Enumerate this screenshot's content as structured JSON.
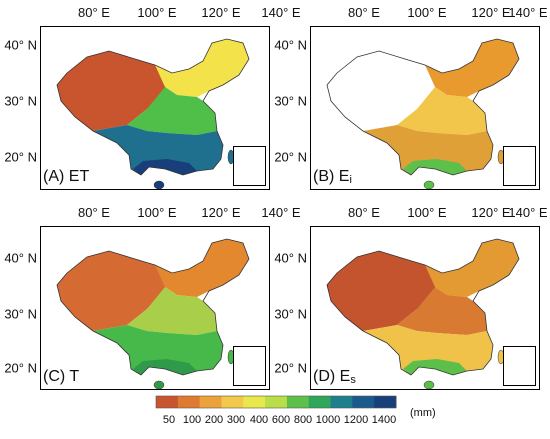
{
  "longitude_labels": [
    "80° E",
    "100° E",
    "120° E",
    "140° E"
  ],
  "latitude_labels": [
    "40° N",
    "30° N",
    "20° N"
  ],
  "panels": [
    {
      "id": "A",
      "label": "(A)  ET",
      "title_main": "(A)  ET",
      "title_sub": "",
      "variable": "ET",
      "palette": {
        "north_west": "#c9552e",
        "north_east": "#f4e24a",
        "center": "#4fbf4a",
        "south": "#1f6f8f",
        "south_tip": "#183f7a"
      }
    },
    {
      "id": "B",
      "label": "(B)  Ei",
      "title_main": "(B)  E",
      "title_sub": "i",
      "variable": "Ei",
      "palette": {
        "north_west": "#ffffff",
        "north_east": "#e89a2f",
        "center": "#f2c64a",
        "south": "#e0a038",
        "south_tip": "#5cc04a"
      }
    },
    {
      "id": "C",
      "label": "(C)  T",
      "title_main": "(C)  T",
      "title_sub": "",
      "variable": "T",
      "palette": {
        "north_west": "#d66a33",
        "north_east": "#e3882f",
        "center": "#a9cf4a",
        "south": "#47b84a",
        "south_tip": "#2f9a4a"
      }
    },
    {
      "id": "D",
      "label": "(D)  Es",
      "title_main": "(D)  E",
      "title_sub": "s",
      "variable": "Es",
      "palette": {
        "north_west": "#c4542d",
        "north_east": "#e49a33",
        "center": "#d97a32",
        "south": "#f0c24a",
        "south_tip": "#5cbf4a"
      }
    }
  ],
  "legend": {
    "ticks": [
      "50",
      "100",
      "200",
      "300",
      "400",
      "600",
      "800",
      "1000",
      "1200",
      "1400"
    ],
    "colors": [
      "#c9552e",
      "#df7a31",
      "#eba23a",
      "#f2c94a",
      "#e8e84c",
      "#b8df4a",
      "#5cc04a",
      "#2fa65a",
      "#1f7f8a",
      "#1d5a8c",
      "#183f7a"
    ],
    "unit": "(mm)"
  }
}
